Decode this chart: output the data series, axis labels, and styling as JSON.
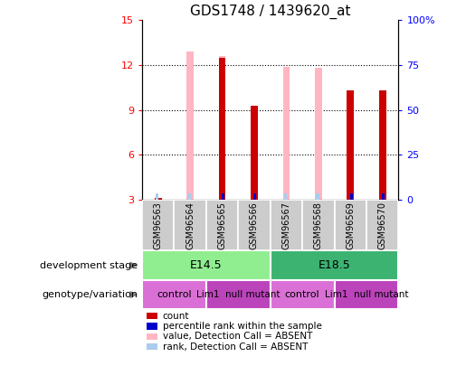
{
  "title": "GDS1748 / 1439620_at",
  "samples": [
    "GSM96563",
    "GSM96564",
    "GSM96565",
    "GSM96566",
    "GSM96567",
    "GSM96568",
    "GSM96569",
    "GSM96570"
  ],
  "count_values": [
    3.1,
    null,
    12.5,
    9.3,
    null,
    null,
    10.3,
    10.3
  ],
  "rank_values": [
    null,
    null,
    3.2,
    3.2,
    null,
    null,
    3.2,
    3.2
  ],
  "pink_value_values": [
    null,
    12.9,
    12.6,
    null,
    11.9,
    11.8,
    null,
    null
  ],
  "pink_rank_values": [
    3.2,
    3.2,
    null,
    null,
    3.2,
    3.2,
    null,
    null
  ],
  "ylim": [
    3,
    15
  ],
  "yticks": [
    3,
    6,
    9,
    12,
    15
  ],
  "y2lim": [
    0,
    100
  ],
  "y2ticks": [
    0,
    25,
    50,
    75,
    100
  ],
  "y2ticklabels": [
    "0",
    "25",
    "50",
    "75",
    "100%"
  ],
  "dev_stage_color_e145": "#90ee90",
  "dev_stage_color_e185": "#3cb371",
  "geno_control_color": "#da70d6",
  "geno_mutant_color": "#bb44bb",
  "bar_color_dark_red": "#cc0000",
  "bar_color_pink": "#ffb6c1",
  "bar_color_blue": "#0000cc",
  "bar_color_light_blue": "#aaccee",
  "bar_width": 0.4,
  "plot_bg_color": "#ffffff",
  "tick_label_area_color": "#cccccc",
  "legend_items": [
    [
      "#cc0000",
      "count"
    ],
    [
      "#0000cc",
      "percentile rank within the sample"
    ],
    [
      "#ffb6c1",
      "value, Detection Call = ABSENT"
    ],
    [
      "#aaccee",
      "rank, Detection Call = ABSENT"
    ]
  ]
}
